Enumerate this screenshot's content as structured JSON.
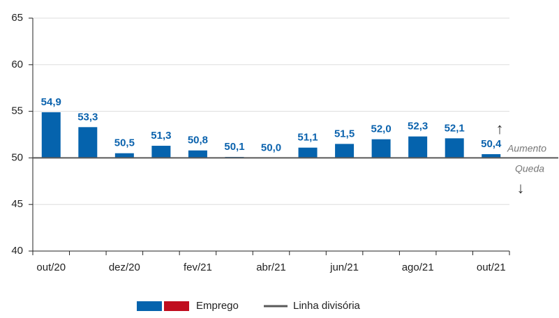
{
  "chart_data": {
    "type": "bar",
    "categories": [
      "out/20",
      null,
      "dez/20",
      null,
      "fev/21",
      null,
      "abr/21",
      null,
      "jun/21",
      null,
      "ago/21",
      null,
      "out/21"
    ],
    "series": [
      {
        "name": "Emprego",
        "colors": [
          "#0563ad",
          "#c00d1e"
        ],
        "values": [
          54.9,
          53.3,
          50.5,
          51.3,
          50.8,
          50.1,
          50.0,
          51.1,
          51.5,
          52.0,
          52.3,
          52.1,
          50.4
        ],
        "value_labels": [
          "54,9",
          "53,3",
          "50,5",
          "51,3",
          "50,8",
          "50,1",
          "50,0",
          "51,1",
          "51,5",
          "52,0",
          "52,3",
          "52,1",
          "50,4"
        ]
      }
    ],
    "baseline": {
      "name": "Linha divisória",
      "value": 50,
      "color": "#595959"
    },
    "annotations": [
      "Aumento",
      "Queda"
    ],
    "ylim": [
      40,
      65
    ],
    "yticks": [
      40,
      45,
      50,
      55,
      60,
      65
    ],
    "grid": true
  }
}
